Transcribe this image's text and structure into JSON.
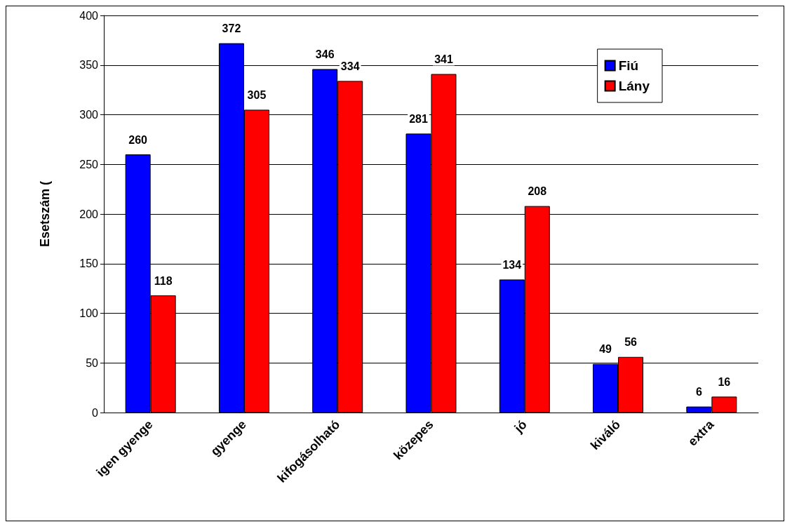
{
  "chart_data": {
    "type": "bar",
    "ylabel": "Esetszám (",
    "categories": [
      "igen gyenge",
      "gyenge",
      "kifogásolható",
      "közepes",
      "jó",
      "kiváló",
      "extra"
    ],
    "series": [
      {
        "name": "Fiú",
        "color": "#0000ff",
        "values": [
          260,
          372,
          346,
          281,
          134,
          49,
          6
        ]
      },
      {
        "name": "Lány",
        "color": "#ff0000",
        "values": [
          118,
          305,
          334,
          341,
          208,
          56,
          16
        ]
      }
    ],
    "ylim": [
      0,
      400
    ],
    "yticks": [
      0,
      50,
      100,
      150,
      200,
      250,
      300,
      350,
      400
    ],
    "grid": "y",
    "legend": "top right",
    "data_labels": true
  }
}
